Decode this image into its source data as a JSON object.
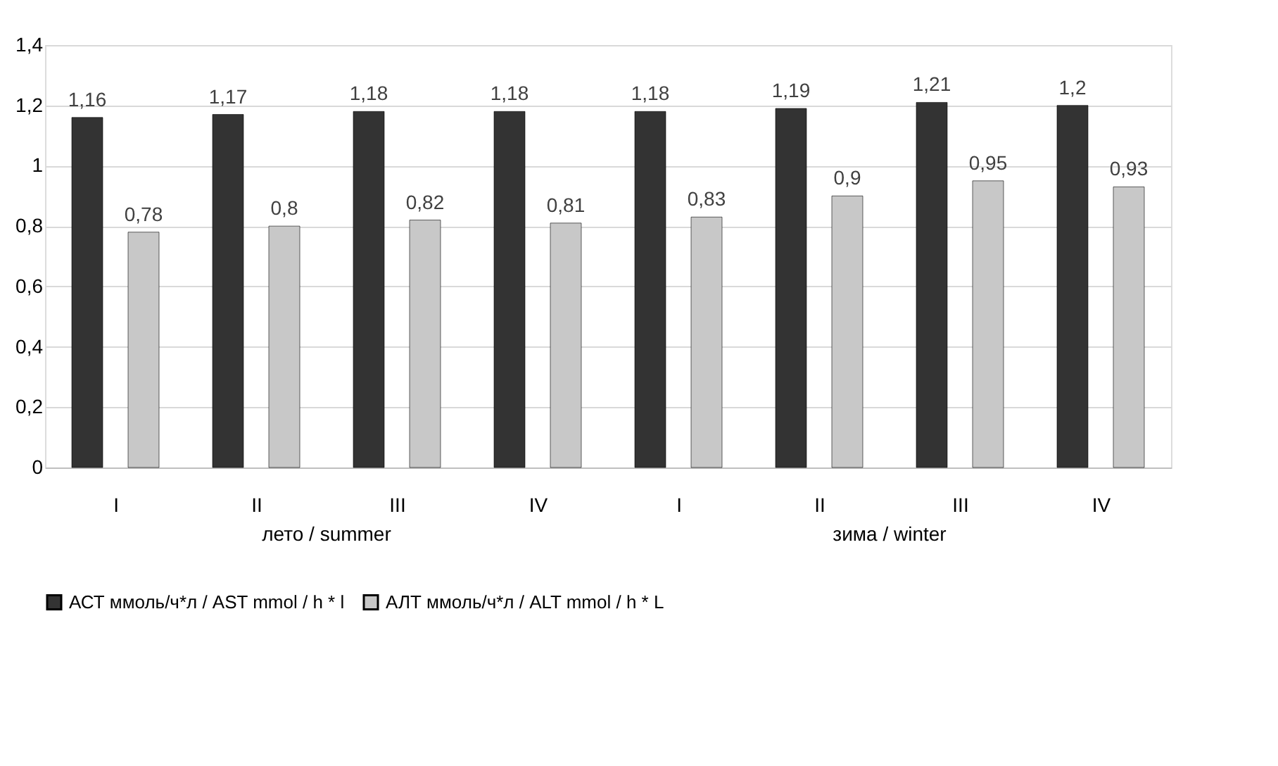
{
  "chart_data": {
    "type": "bar",
    "categories": [
      "I",
      "II",
      "III",
      "IV",
      "I",
      "II",
      "III",
      "IV"
    ],
    "series": [
      {
        "name": "АСТ ммоль/ч*л / AST mmol / h * l",
        "color": "#333333",
        "values": [
          1.16,
          1.17,
          1.18,
          1.18,
          1.18,
          1.19,
          1.21,
          1.2
        ],
        "value_labels": [
          "1,16",
          "1,17",
          "1,18",
          "1,18",
          "1,18",
          "1,19",
          "1,21",
          "1,2"
        ]
      },
      {
        "name": "АЛТ ммоль/ч*л / ALT mmol / h * L",
        "color": "#c8c8c8",
        "values": [
          0.78,
          0.8,
          0.82,
          0.81,
          0.83,
          0.9,
          0.95,
          0.93
        ],
        "value_labels": [
          "0,78",
          "0,8",
          "0,82",
          "0,81",
          "0,83",
          "0,9",
          "0,95",
          "0,93"
        ]
      }
    ],
    "annotations": [
      "лето / summer",
      "зима / winter"
    ],
    "ylim": [
      0,
      1.4
    ],
    "yticks": [
      {
        "value": 0,
        "label": "0"
      },
      {
        "value": 0.2,
        "label": "0,2"
      },
      {
        "value": 0.4,
        "label": "0,4"
      },
      {
        "value": 0.6,
        "label": "0,6"
      },
      {
        "value": 0.8,
        "label": "0,8"
      },
      {
        "value": 1,
        "label": "1"
      },
      {
        "value": 1.2,
        "label": "1,2"
      },
      {
        "value": 1.4,
        "label": "1,4"
      }
    ],
    "grid": "y",
    "legend": "bottom"
  }
}
